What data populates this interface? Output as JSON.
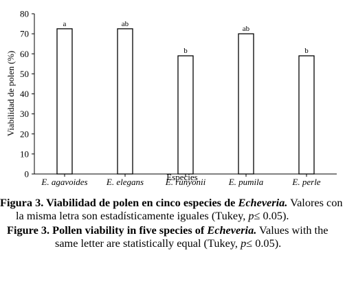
{
  "chart_data": {
    "type": "bar",
    "categories": [
      "E. agavoides",
      "E. elegans",
      "E. runyonii",
      "E. pumila",
      "E. perle"
    ],
    "values": [
      72.5,
      72.5,
      59,
      70,
      59
    ],
    "letters": [
      "a",
      "ab",
      "b",
      "ab",
      "b"
    ],
    "xlabel": "Especies",
    "ylabel": "Viabilidad de polen (%)",
    "ylim": [
      0,
      80
    ],
    "yticks": [
      0,
      10,
      20,
      30,
      40,
      50,
      60,
      70,
      80
    ],
    "grid": false,
    "legend": "none"
  },
  "captions": {
    "es": {
      "label": "Figura 3. Viabilidad de polen en cinco especies de ",
      "label_genus": "Echeveria.",
      "text_a": " Valores con la misma letra son estadísticamente iguales (Tukey, ",
      "p": "p",
      "text_b": "≤ 0.05)."
    },
    "en": {
      "label": "Figure 3. Pollen viability in five species of ",
      "label_genus": "Echeveria.",
      "text_a": " Values with the same letter are statistically equal (Tukey, ",
      "p": "p",
      "text_b": "≤ 0.05)."
    }
  }
}
